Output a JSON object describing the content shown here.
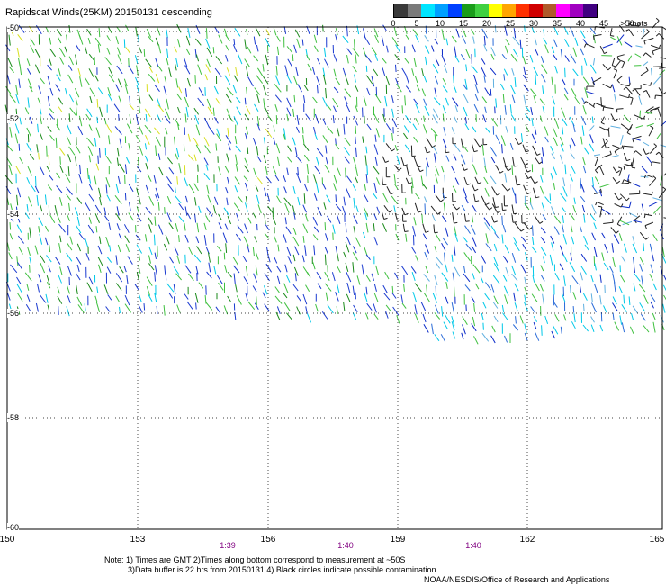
{
  "title": "Rapidscat Winds(25KM) 20150131 descending",
  "colorbar": {
    "labels": [
      "0",
      "5",
      "10",
      "15",
      "20",
      "25",
      "30",
      "35",
      "40",
      "45",
      ">50"
    ],
    "unit": "knots",
    "colors": [
      "#3a3a3a",
      "#7a7a7a",
      "#00e5ff",
      "#00a0ff",
      "#0040ff",
      "#1a9c1a",
      "#40d040",
      "#ffff00",
      "#ffa500",
      "#ff3000",
      "#d00000",
      "#b05a2a",
      "#ff00ff",
      "#a000c0",
      "#400080"
    ]
  },
  "axes": {
    "lon_ticks": [
      "150",
      "153",
      "156",
      "159",
      "162",
      "165"
    ],
    "lat_ticks": [
      "-50",
      "-52",
      "-54",
      "-56",
      "-58",
      "-60"
    ]
  },
  "times": [
    "1:39",
    "1:40",
    "1:40"
  ],
  "notes": {
    "line1": "Note: 1) Times are GMT 2)Times along bottom correspond to measurement at ~50S",
    "line2": "3)Data buffer is 22 hrs from 20150131 4) Black circles indicate possible contamination",
    "credit": "NOAA/NESDIS/Office of Research and Applications"
  }
}
